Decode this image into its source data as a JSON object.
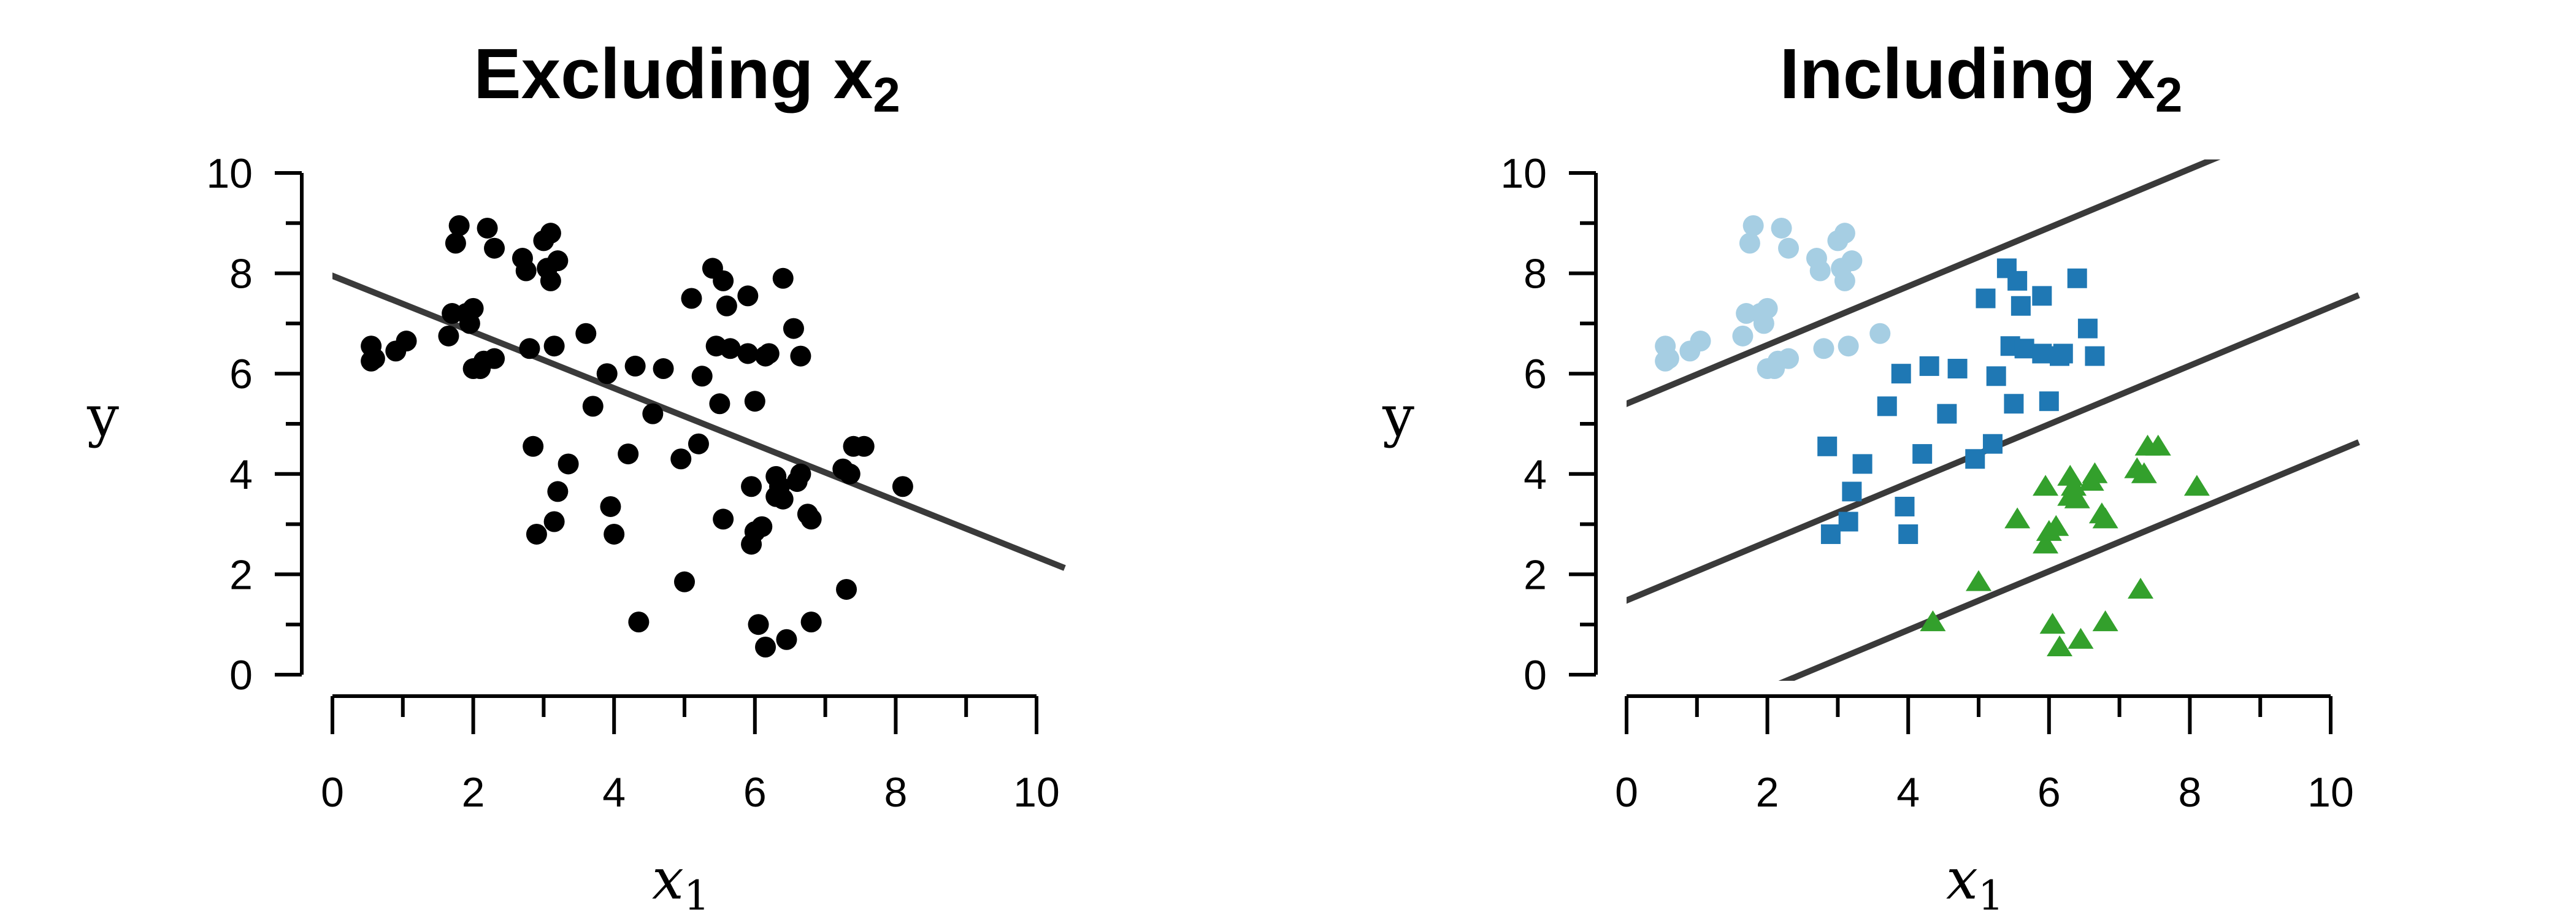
{
  "chart_data": [
    {
      "type": "scatter",
      "title": "Excluding x",
      "title_subscript": "2",
      "xlabel": "x",
      "xlabel_subscript": "1",
      "ylabel": "y",
      "xlim": [
        -0.3,
        10.4
      ],
      "ylim": [
        -0.4,
        10.1
      ],
      "xticks": [
        0,
        2,
        4,
        6,
        8,
        10
      ],
      "yticks": [
        0,
        2,
        4,
        6,
        8,
        10
      ],
      "grid": false,
      "series": [
        {
          "marker": "circle",
          "color": "#000000",
          "points": [
            [
              0.55,
              6.55
            ],
            [
              0.55,
              6.25
            ],
            [
              0.6,
              6.3
            ],
            [
              0.9,
              6.45
            ],
            [
              1.05,
              6.65
            ],
            [
              1.65,
              6.75
            ],
            [
              1.7,
              7.2
            ],
            [
              1.75,
              8.6
            ],
            [
              1.8,
              8.95
            ],
            [
              1.9,
              7.2
            ],
            [
              1.95,
              7.0
            ],
            [
              2.0,
              7.3
            ],
            [
              2.0,
              6.1
            ],
            [
              2.1,
              6.1
            ],
            [
              2.15,
              6.25
            ],
            [
              2.2,
              8.9
            ],
            [
              2.3,
              8.5
            ],
            [
              2.3,
              6.3
            ],
            [
              2.7,
              8.3
            ],
            [
              2.75,
              8.05
            ],
            [
              2.8,
              6.5
            ],
            [
              2.85,
              4.55
            ],
            [
              2.9,
              2.8
            ],
            [
              3.0,
              8.65
            ],
            [
              3.05,
              8.1
            ],
            [
              3.1,
              8.8
            ],
            [
              3.1,
              7.85
            ],
            [
              3.15,
              6.55
            ],
            [
              3.15,
              3.05
            ],
            [
              3.2,
              3.65
            ],
            [
              3.2,
              8.25
            ],
            [
              3.35,
              4.2
            ],
            [
              3.6,
              6.8
            ],
            [
              3.7,
              5.35
            ],
            [
              3.9,
              6.0
            ],
            [
              3.95,
              3.35
            ],
            [
              4.0,
              2.8
            ],
            [
              4.2,
              4.4
            ],
            [
              4.3,
              6.15
            ],
            [
              4.35,
              1.05
            ],
            [
              4.55,
              5.2
            ],
            [
              4.7,
              6.1
            ],
            [
              4.95,
              4.3
            ],
            [
              5.0,
              1.85
            ],
            [
              5.1,
              7.5
            ],
            [
              5.2,
              4.6
            ],
            [
              5.25,
              5.95
            ],
            [
              5.4,
              8.1
            ],
            [
              5.45,
              6.55
            ],
            [
              5.5,
              5.4
            ],
            [
              5.55,
              3.1
            ],
            [
              5.55,
              7.85
            ],
            [
              5.6,
              7.35
            ],
            [
              5.65,
              6.5
            ],
            [
              5.9,
              7.55
            ],
            [
              5.9,
              6.4
            ],
            [
              5.95,
              3.75
            ],
            [
              5.95,
              2.6
            ],
            [
              6.0,
              5.45
            ],
            [
              6.0,
              2.85
            ],
            [
              6.05,
              1.0
            ],
            [
              6.1,
              2.95
            ],
            [
              6.15,
              6.35
            ],
            [
              6.15,
              0.55
            ],
            [
              6.2,
              6.4
            ],
            [
              6.3,
              3.55
            ],
            [
              6.3,
              3.95
            ],
            [
              6.35,
              3.75
            ],
            [
              6.4,
              3.5
            ],
            [
              6.4,
              7.9
            ],
            [
              6.45,
              0.7
            ],
            [
              6.55,
              6.9
            ],
            [
              6.6,
              3.85
            ],
            [
              6.65,
              6.35
            ],
            [
              6.65,
              4.0
            ],
            [
              6.75,
              3.2
            ],
            [
              6.8,
              3.1
            ],
            [
              6.8,
              1.05
            ],
            [
              7.25,
              4.1
            ],
            [
              7.3,
              1.7
            ],
            [
              7.35,
              4.0
            ],
            [
              7.4,
              4.55
            ],
            [
              7.55,
              4.55
            ],
            [
              8.1,
              3.75
            ]
          ]
        }
      ],
      "fit_lines": [
        {
          "intercept": 7.95,
          "slope": -0.56
        }
      ]
    },
    {
      "type": "scatter",
      "title": "Including x",
      "title_subscript": "2",
      "xlabel": "x",
      "xlabel_subscript": "1",
      "ylabel": "y",
      "xlim": [
        -0.3,
        10.4
      ],
      "ylim": [
        -0.4,
        10.1
      ],
      "xticks": [
        0,
        2,
        4,
        6,
        8,
        10
      ],
      "yticks": [
        0,
        2,
        4,
        6,
        8,
        10
      ],
      "grid": false,
      "series": [
        {
          "marker": "circle",
          "color": "#a6cee3",
          "points": [
            [
              0.55,
              6.55
            ],
            [
              0.55,
              6.25
            ],
            [
              0.6,
              6.3
            ],
            [
              0.9,
              6.45
            ],
            [
              1.05,
              6.65
            ],
            [
              1.65,
              6.75
            ],
            [
              1.7,
              7.2
            ],
            [
              1.75,
              8.6
            ],
            [
              1.8,
              8.95
            ],
            [
              1.9,
              7.2
            ],
            [
              1.95,
              7.0
            ],
            [
              2.0,
              7.3
            ],
            [
              2.0,
              6.1
            ],
            [
              2.1,
              6.1
            ],
            [
              2.15,
              6.25
            ],
            [
              2.2,
              8.9
            ],
            [
              2.3,
              8.5
            ],
            [
              2.3,
              6.3
            ],
            [
              2.7,
              8.3
            ],
            [
              2.75,
              8.05
            ],
            [
              2.8,
              6.5
            ],
            [
              3.0,
              8.65
            ],
            [
              3.05,
              8.1
            ],
            [
              3.1,
              8.8
            ],
            [
              3.1,
              7.85
            ],
            [
              3.15,
              6.55
            ],
            [
              3.2,
              8.25
            ],
            [
              3.6,
              6.8
            ]
          ]
        },
        {
          "marker": "square",
          "color": "#1f78b4",
          "points": [
            [
              2.85,
              4.55
            ],
            [
              2.9,
              2.8
            ],
            [
              3.15,
              3.05
            ],
            [
              3.2,
              3.65
            ],
            [
              3.35,
              4.2
            ],
            [
              3.7,
              5.35
            ],
            [
              3.9,
              6.0
            ],
            [
              3.95,
              3.35
            ],
            [
              4.0,
              2.8
            ],
            [
              4.2,
              4.4
            ],
            [
              4.3,
              6.15
            ],
            [
              4.55,
              5.2
            ],
            [
              4.7,
              6.1
            ],
            [
              4.95,
              4.3
            ],
            [
              5.1,
              7.5
            ],
            [
              5.2,
              4.6
            ],
            [
              5.25,
              5.95
            ],
            [
              5.4,
              8.1
            ],
            [
              5.45,
              6.55
            ],
            [
              5.5,
              5.4
            ],
            [
              5.55,
              7.85
            ],
            [
              5.6,
              7.35
            ],
            [
              5.65,
              6.5
            ],
            [
              5.9,
              7.55
            ],
            [
              5.9,
              6.4
            ],
            [
              6.0,
              5.45
            ],
            [
              6.15,
              6.35
            ],
            [
              6.2,
              6.4
            ],
            [
              6.4,
              7.9
            ],
            [
              6.55,
              6.9
            ],
            [
              6.65,
              6.35
            ]
          ]
        },
        {
          "marker": "triangle",
          "color": "#33a02c",
          "points": [
            [
              4.35,
              1.05
            ],
            [
              5.0,
              1.85
            ],
            [
              5.55,
              3.1
            ],
            [
              5.95,
              3.75
            ],
            [
              5.95,
              2.6
            ],
            [
              6.0,
              2.85
            ],
            [
              6.05,
              1.0
            ],
            [
              6.1,
              2.95
            ],
            [
              6.15,
              0.55
            ],
            [
              6.3,
              3.55
            ],
            [
              6.3,
              3.95
            ],
            [
              6.35,
              3.75
            ],
            [
              6.4,
              3.5
            ],
            [
              6.45,
              0.7
            ],
            [
              6.6,
              3.85
            ],
            [
              6.65,
              4.0
            ],
            [
              6.75,
              3.2
            ],
            [
              6.8,
              3.1
            ],
            [
              6.8,
              1.05
            ],
            [
              7.25,
              4.1
            ],
            [
              7.3,
              1.7
            ],
            [
              7.35,
              4.0
            ],
            [
              7.4,
              4.55
            ],
            [
              7.55,
              4.55
            ],
            [
              8.1,
              3.75
            ]
          ]
        }
      ],
      "fit_lines": [
        {
          "intercept": 5.4,
          "slope": 0.585
        },
        {
          "intercept": 1.48,
          "slope": 0.585
        },
        {
          "intercept": -1.45,
          "slope": 0.585
        }
      ]
    }
  ]
}
